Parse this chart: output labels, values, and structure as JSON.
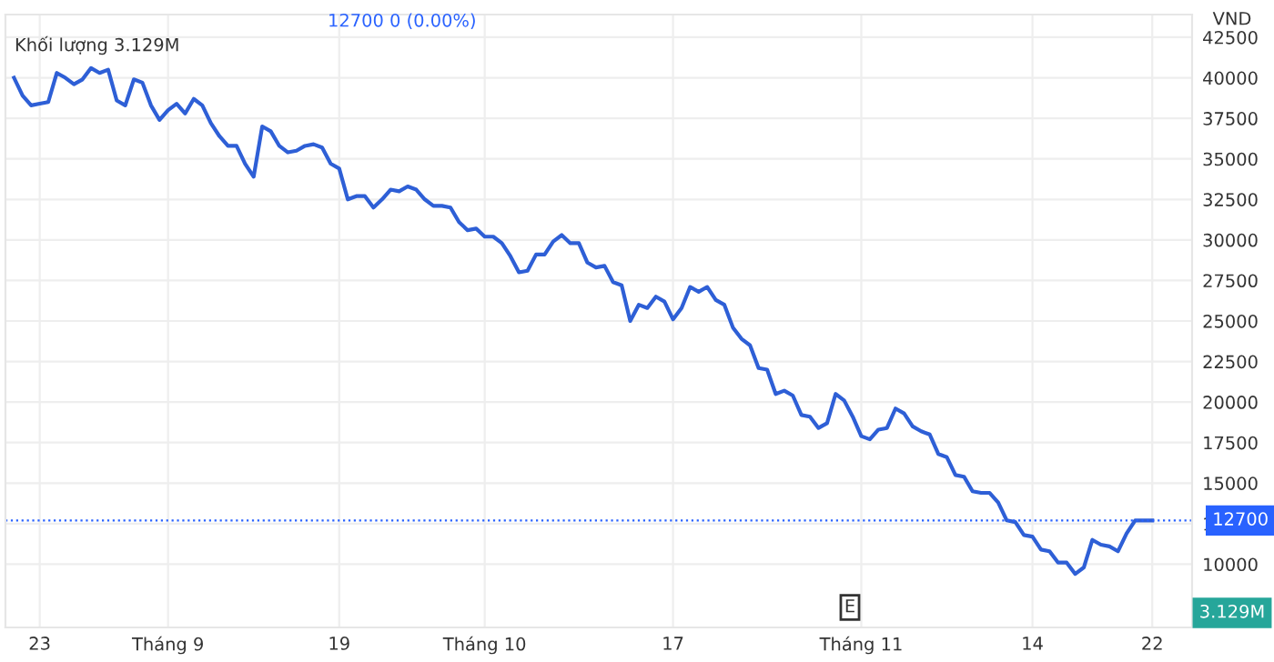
{
  "chart_data": {
    "type": "line",
    "ylabel": "VND",
    "categories": [
      null,
      null,
      null,
      "23",
      null,
      null,
      null,
      null,
      null,
      null,
      null,
      null,
      null,
      null,
      null,
      null,
      null,
      null,
      "Tháng 9",
      null,
      null,
      null,
      null,
      null,
      null,
      null,
      null,
      null,
      null,
      null,
      null,
      null,
      null,
      null,
      null,
      null,
      null,
      null,
      "19",
      null,
      null,
      null,
      null,
      null,
      null,
      null,
      null,
      null,
      null,
      null,
      null,
      null,
      null,
      null,
      null,
      "Tháng 10",
      null,
      null,
      null,
      null,
      null,
      null,
      null,
      null,
      null,
      null,
      null,
      null,
      null,
      null,
      null,
      null,
      null,
      null,
      null,
      null,
      null,
      "17",
      null,
      null,
      null,
      null,
      null,
      null,
      null,
      null,
      null,
      null,
      null,
      null,
      null,
      null,
      null,
      null,
      null,
      null,
      null,
      null,
      null,
      "Tháng 11",
      null,
      null,
      null,
      null,
      null,
      null,
      null,
      null,
      null,
      null,
      null,
      null,
      null,
      null,
      null,
      null,
      null,
      null,
      null,
      "14",
      null,
      null,
      null,
      null,
      null,
      null,
      null,
      null,
      null,
      null,
      null,
      null,
      null,
      "22"
    ],
    "series": [
      {
        "color": "#2e5fd6",
        "values": [
          40000,
          38900,
          38300,
          38400,
          38500,
          40300,
          40000,
          39600,
          39900,
          40600,
          40300,
          40500,
          38600,
          38300,
          39900,
          39700,
          38300,
          37400,
          38000,
          38400,
          37800,
          38700,
          38300,
          37200,
          36400,
          35800,
          35800,
          34700,
          33900,
          37000,
          36700,
          35800,
          35400,
          35500,
          35800,
          35900,
          35700,
          34700,
          34400,
          32500,
          32700,
          32700,
          32000,
          32500,
          33100,
          33000,
          33300,
          33100,
          32500,
          32100,
          32100,
          32000,
          31100,
          30600,
          30700,
          30200,
          30200,
          29800,
          29000,
          28000,
          28100,
          29100,
          29100,
          29900,
          30300,
          29800,
          29800,
          28600,
          28300,
          28400,
          27400,
          27200,
          25000,
          26000,
          25800,
          26500,
          26200,
          25100,
          25800,
          27100,
          26800,
          27100,
          26300,
          26000,
          24600,
          23900,
          23500,
          22100,
          22000,
          20500,
          20700,
          20400,
          19200,
          19100,
          18400,
          18700,
          20500,
          20100,
          19100,
          17900,
          17700,
          18300,
          18400,
          19600,
          19300,
          18500,
          18200,
          18000,
          16800,
          16600,
          15500,
          15400,
          14500,
          14400,
          14400,
          13800,
          12700,
          12600,
          11800,
          11700,
          10900,
          10800,
          10100,
          10100,
          9400,
          9800,
          11500,
          11200,
          11100,
          10800,
          11900,
          12700,
          12700,
          12700
        ]
      }
    ],
    "ylim": [
      6100,
      43900
    ],
    "yticks": [
      10000,
      12500,
      15000,
      17500,
      20000,
      22500,
      25000,
      27500,
      30000,
      32500,
      35000,
      37500,
      40000,
      42500
    ],
    "grid": true,
    "ref_lines": [
      {
        "axis": "y",
        "value": 12700,
        "label": "12700",
        "color": "#2962ff",
        "line_style": "dotted"
      }
    ],
    "annotations": [
      "12700 0 (0.00%)",
      "Khối lượng 3.129M",
      "E",
      "3.129M"
    ]
  }
}
